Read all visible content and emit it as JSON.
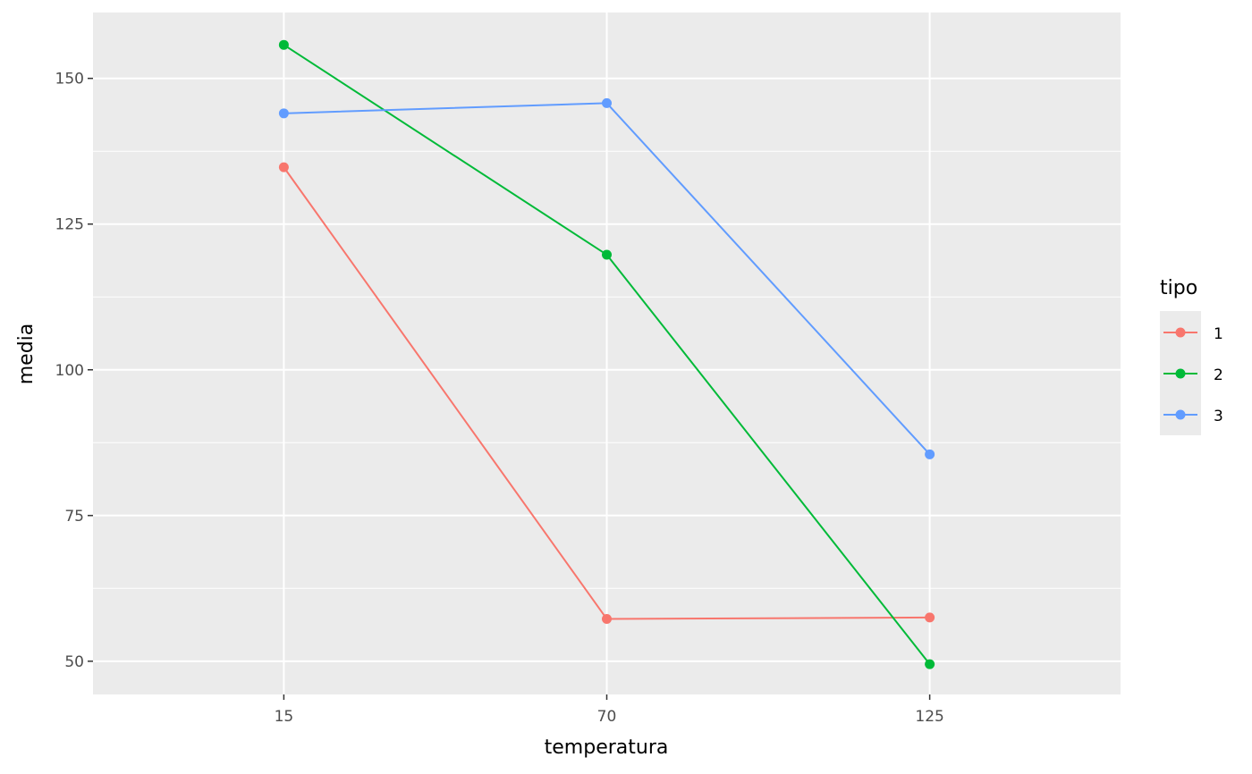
{
  "chart_data": {
    "type": "line",
    "xlabel": "temperatura",
    "ylabel": "media",
    "x": [
      15,
      70,
      125
    ],
    "x_tick_labels": [
      "15",
      "70",
      "125"
    ],
    "y_ticks": [
      50,
      75,
      100,
      125,
      150
    ],
    "y_tick_labels": [
      "50",
      "75",
      "100",
      "125",
      "150"
    ],
    "xlim": [
      -17.5,
      157.5
    ],
    "ylim": [
      44.3,
      161.3
    ],
    "grid": true,
    "panel_background": "#ebebeb",
    "grid_color": "#ffffff",
    "legend": {
      "title": "tipo",
      "placement": "right"
    },
    "series": [
      {
        "name": "1",
        "color": "#F8766D",
        "values": [
          134.75,
          57.25,
          57.5
        ]
      },
      {
        "name": "2",
        "color": "#00BA38",
        "values": [
          155.75,
          119.75,
          49.5
        ]
      },
      {
        "name": "3",
        "color": "#619CFF",
        "values": [
          144.0,
          145.75,
          85.5
        ]
      }
    ]
  }
}
